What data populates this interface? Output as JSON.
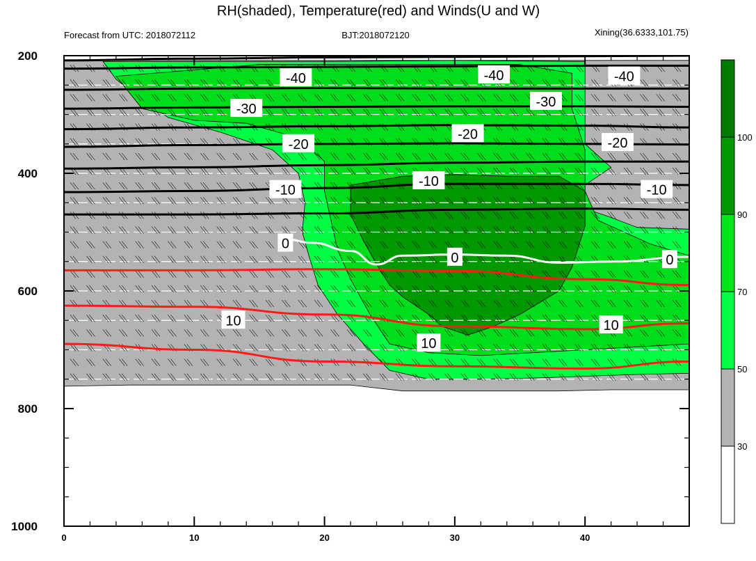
{
  "chart_data": {
    "type": "contour",
    "title": "RH(shaded), Temperature(red) and Winds(U and W)",
    "subtitle_left": "Forecast from UTC: 2018072112",
    "subtitle_center": "BJT:2018072120",
    "subtitle_right": "Xining(36.6333,101.75)",
    "x_axis": {
      "range": [
        0,
        48
      ],
      "ticks": [
        0,
        10,
        20,
        30,
        40
      ],
      "tick_labels": [
        "0",
        "10",
        "20",
        "30",
        "40"
      ]
    },
    "y_axis": {
      "range": [
        1000,
        200
      ],
      "reversed": true,
      "ticks": [
        200,
        400,
        600,
        800,
        1000
      ],
      "tick_labels": [
        "200",
        "400",
        "600",
        "800",
        "1000"
      ]
    },
    "colorbar": {
      "levels": [
        30,
        50,
        70,
        90,
        100
      ],
      "level_labels": [
        "30",
        "50",
        "70",
        "90",
        "100"
      ],
      "colors": [
        "#ffffff",
        "#b3b3b3",
        "#00ff44",
        "#00e61a",
        "#009900",
        "#007a00"
      ]
    },
    "rh_fields": [
      {
        "level": 30,
        "color": "#b3b3b3",
        "points": [
          [
            0,
            208
          ],
          [
            0,
            762
          ],
          [
            5,
            760
          ],
          [
            10,
            760
          ],
          [
            14,
            760
          ],
          [
            18,
            760
          ],
          [
            22,
            760
          ],
          [
            26,
            770
          ],
          [
            30,
            770
          ],
          [
            34,
            770
          ],
          [
            38,
            770
          ],
          [
            42,
            768
          ],
          [
            48,
            768
          ],
          [
            48,
            208
          ],
          [
            40,
            208
          ],
          [
            30,
            208
          ],
          [
            20,
            208
          ],
          [
            10,
            208
          ]
        ]
      },
      {
        "level": 50,
        "color": "#00ff44",
        "points": [
          [
            3,
            210
          ],
          [
            4,
            240
          ],
          [
            6,
            275
          ],
          [
            8,
            305
          ],
          [
            12,
            330
          ],
          [
            16,
            360
          ],
          [
            18,
            400
          ],
          [
            18.5,
            450
          ],
          [
            18.3,
            500
          ],
          [
            18.8,
            540
          ],
          [
            19.5,
            590
          ],
          [
            21,
            640
          ],
          [
            23,
            690
          ],
          [
            25,
            735
          ],
          [
            28,
            750
          ],
          [
            32,
            750
          ],
          [
            36,
            748
          ],
          [
            40,
            745
          ],
          [
            44,
            742
          ],
          [
            48,
            740
          ],
          [
            48,
            495
          ],
          [
            44,
            492
          ],
          [
            42,
            475
          ],
          [
            40,
            460
          ],
          [
            40,
            420
          ],
          [
            42,
            390
          ],
          [
            40,
            350
          ],
          [
            40,
            300
          ],
          [
            40,
            250
          ],
          [
            40,
            210
          ],
          [
            30,
            208
          ],
          [
            20,
            210
          ],
          [
            10,
            210
          ]
        ]
      },
      {
        "level": 70,
        "color": "#00dd1a",
        "points": [
          [
            4,
            235
          ],
          [
            6,
            290
          ],
          [
            10,
            310
          ],
          [
            14,
            315
          ],
          [
            18,
            340
          ],
          [
            20,
            380
          ],
          [
            20,
            430
          ],
          [
            20.5,
            480
          ],
          [
            21,
            530
          ],
          [
            22,
            580
          ],
          [
            23.5,
            640
          ],
          [
            25,
            690
          ],
          [
            28,
            705
          ],
          [
            32,
            710
          ],
          [
            36,
            705
          ],
          [
            40,
            700
          ],
          [
            44,
            695
          ],
          [
            48,
            690
          ],
          [
            48,
            540
          ],
          [
            45,
            520
          ],
          [
            43,
            500
          ],
          [
            41,
            480
          ],
          [
            40,
            430
          ],
          [
            40,
            360
          ],
          [
            39,
            290
          ],
          [
            39,
            230
          ],
          [
            35,
            215
          ],
          [
            25,
            215
          ],
          [
            15,
            215
          ]
        ]
      },
      {
        "level": 90,
        "color": "#009900",
        "points": [
          [
            22,
            420
          ],
          [
            26,
            405
          ],
          [
            30,
            402
          ],
          [
            34,
            405
          ],
          [
            38,
            405
          ],
          [
            40,
            430
          ],
          [
            40,
            490
          ],
          [
            39,
            560
          ],
          [
            38,
            600
          ],
          [
            35,
            640
          ],
          [
            33,
            660
          ],
          [
            31,
            675
          ],
          [
            29,
            660
          ],
          [
            28,
            640
          ],
          [
            26,
            610
          ],
          [
            25,
            590
          ],
          [
            24,
            555
          ],
          [
            23,
            515
          ],
          [
            22,
            470
          ]
        ]
      }
    ],
    "black_isotherms": [
      {
        "label": "-40",
        "ys": [
          208,
          205,
          203,
          202,
          201,
          200
        ]
      },
      {
        "label": "-40b",
        "ys": [
          222,
          220,
          219,
          218,
          217,
          217
        ]
      },
      {
        "label": "-30",
        "ys": [
          258,
          256,
          255,
          256,
          256,
          256
        ]
      },
      {
        "label": "-30b",
        "ys": [
          290,
          288,
          287,
          286,
          286,
          287
        ]
      },
      {
        "label": "-20",
        "ys": [
          325,
          322,
          320,
          318,
          319,
          322
        ]
      },
      {
        "label": "-20b",
        "ys": [
          355,
          352,
          350,
          349,
          350,
          351
        ]
      },
      {
        "label": "-10",
        "ys": [
          392,
          390,
          386,
          382,
          380,
          380
        ]
      },
      {
        "label": "-10b",
        "ys": [
          432,
          430,
          425,
          418,
          418,
          420
        ]
      },
      {
        "label": "-10c",
        "ys": [
          470,
          470,
          468,
          462,
          460,
          462
        ]
      }
    ],
    "red_isotherms": [
      {
        "label": "10",
        "ys": [
          565,
          565,
          563,
          566,
          580,
          590
        ]
      },
      {
        "label": "10b",
        "ys": [
          625,
          627,
          640,
          660,
          665,
          655
        ]
      },
      {
        "label": "10c",
        "ys": [
          690,
          700,
          720,
          728,
          732,
          720
        ]
      }
    ],
    "zero_isotherm": [
      [
        17,
        512
      ],
      [
        19,
        518
      ],
      [
        22,
        532
      ],
      [
        24,
        555
      ],
      [
        26,
        540
      ],
      [
        30,
        538
      ],
      [
        34,
        540
      ],
      [
        38,
        552
      ],
      [
        42,
        550
      ],
      [
        48,
        542
      ]
    ],
    "contour_labels": [
      {
        "text": "-40",
        "x": 17.8,
        "y": 238
      },
      {
        "text": "-40",
        "x": 33,
        "y": 233
      },
      {
        "text": "-40",
        "x": 43,
        "y": 235
      },
      {
        "text": "-30",
        "x": 14,
        "y": 290
      },
      {
        "text": "-30",
        "x": 37,
        "y": 278
      },
      {
        "text": "-20",
        "x": 18,
        "y": 350
      },
      {
        "text": "-20",
        "x": 31,
        "y": 333
      },
      {
        "text": "-20",
        "x": 42.5,
        "y": 348
      },
      {
        "text": "-10",
        "x": 17,
        "y": 428
      },
      {
        "text": "-10",
        "x": 28,
        "y": 413
      },
      {
        "text": "-10",
        "x": 45.5,
        "y": 428
      },
      {
        "text": "0",
        "x": 17,
        "y": 519
      },
      {
        "text": "0",
        "x": 30,
        "y": 543
      },
      {
        "text": "0",
        "x": 46.5,
        "y": 547
      },
      {
        "text": "10",
        "x": 13,
        "y": 650
      },
      {
        "text": "10",
        "x": 28,
        "y": 689
      },
      {
        "text": "10",
        "x": 42,
        "y": 658
      }
    ]
  }
}
